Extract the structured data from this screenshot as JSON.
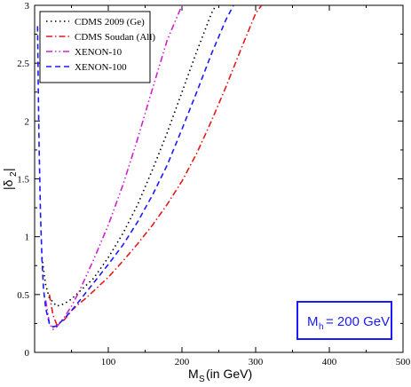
{
  "chart_data": {
    "type": "line",
    "title": "",
    "xlabel": "M_S (in GeV)",
    "ylabel": "|δ_2|",
    "xlim": [
      0,
      500
    ],
    "ylim": [
      0,
      3
    ],
    "x_ticks": [
      100,
      200,
      300,
      400,
      500
    ],
    "y_ticks": [
      0,
      0.5,
      1,
      1.5,
      2,
      2.5,
      3
    ],
    "x_tick_labels": [
      "100",
      "200",
      "300",
      "400",
      "500"
    ],
    "y_tick_labels": [
      "0",
      "0.5",
      "1",
      "1.5",
      "2",
      "2.5",
      "3"
    ],
    "grid": false,
    "legend_position": "top-left",
    "annotation": "M_h = 200 GeV",
    "annotation_position": "bottom-right",
    "annotation_color": "#1a1aff",
    "series": [
      {
        "name": "CDMS 2009 (Ge)",
        "color": "#000000",
        "style": "dotted",
        "x": [
          10,
          15,
          20,
          30,
          40,
          50,
          60,
          80,
          100,
          120,
          140,
          160,
          180,
          200,
          220,
          240,
          246
        ],
        "y": [
          0.82,
          0.58,
          0.47,
          0.4,
          0.42,
          0.46,
          0.52,
          0.64,
          0.82,
          1.03,
          1.28,
          1.58,
          1.9,
          2.25,
          2.6,
          2.93,
          3.0
        ]
      },
      {
        "name": "CDMS Soudan (All)",
        "color": "#e41a1a",
        "style": "dashdot",
        "x": [
          20,
          25,
          30,
          40,
          50,
          60,
          70,
          80,
          100,
          120,
          140,
          160,
          180,
          200,
          220,
          240,
          260,
          280,
          300,
          308
        ],
        "y": [
          0.5,
          0.32,
          0.24,
          0.28,
          0.36,
          0.42,
          0.47,
          0.53,
          0.65,
          0.79,
          0.94,
          1.1,
          1.28,
          1.48,
          1.72,
          2.0,
          2.3,
          2.62,
          2.93,
          3.0
        ]
      },
      {
        "name": "XENON-10",
        "color": "#d020d0",
        "style": "dashdotdot",
        "x": [
          15,
          20,
          25,
          30,
          40,
          50,
          60,
          80,
          100,
          120,
          140,
          160,
          180,
          200
        ],
        "y": [
          0.45,
          0.25,
          0.2,
          0.22,
          0.3,
          0.4,
          0.52,
          0.8,
          1.1,
          1.45,
          1.85,
          2.28,
          2.7,
          3.0
        ]
      },
      {
        "name": "XENON-100",
        "color": "#1a1aff",
        "style": "dashed",
        "x": [
          4,
          5,
          6,
          8,
          10,
          12,
          15,
          20,
          25,
          30,
          40,
          50,
          60,
          80,
          100,
          120,
          140,
          160,
          180,
          200,
          220,
          240,
          260,
          270
        ],
        "y": [
          2.82,
          2.3,
          1.8,
          1.2,
          0.8,
          0.55,
          0.38,
          0.25,
          0.22,
          0.23,
          0.29,
          0.36,
          0.44,
          0.6,
          0.76,
          0.93,
          1.13,
          1.36,
          1.62,
          1.93,
          2.25,
          2.58,
          2.88,
          3.0
        ]
      }
    ]
  }
}
